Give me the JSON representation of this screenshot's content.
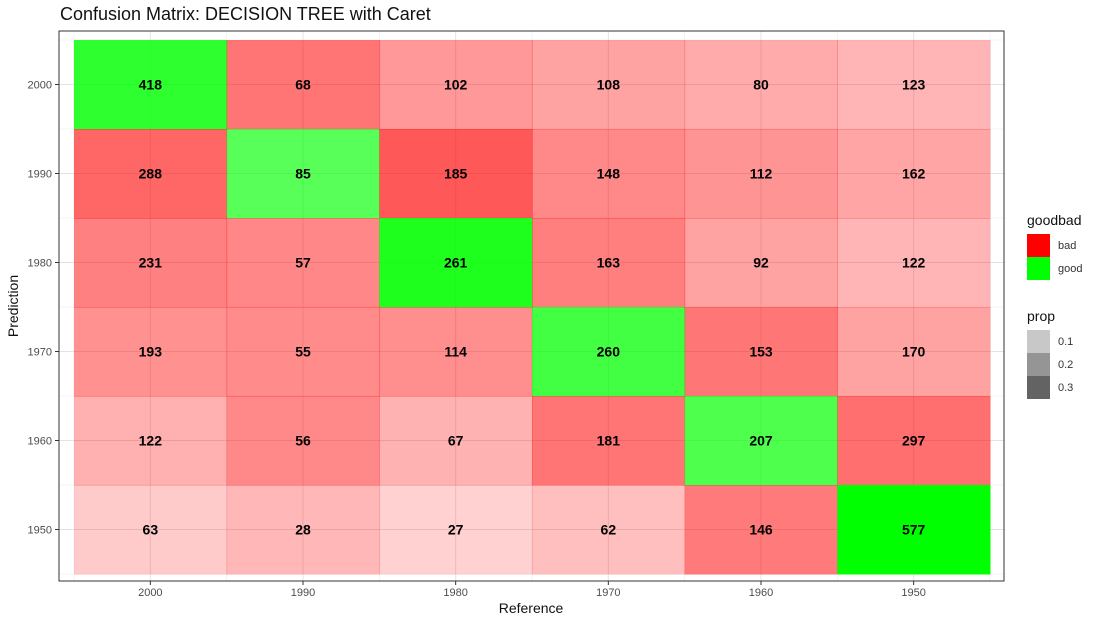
{
  "chart_data": {
    "type": "heatmap",
    "title": "Confusion Matrix: DECISION TREE with Caret",
    "xlabel": "Reference",
    "ylabel": "Prediction",
    "x_categories": [
      "2000",
      "1990",
      "1980",
      "1970",
      "1960",
      "1950"
    ],
    "y_categories": [
      "2000",
      "1990",
      "1980",
      "1970",
      "1960",
      "1950"
    ],
    "values": [
      [
        418,
        68,
        102,
        108,
        80,
        123
      ],
      [
        288,
        85,
        185,
        148,
        112,
        162
      ],
      [
        231,
        57,
        261,
        163,
        92,
        122
      ],
      [
        193,
        55,
        114,
        260,
        153,
        170
      ],
      [
        122,
        56,
        67,
        181,
        207,
        297
      ],
      [
        63,
        28,
        27,
        62,
        146,
        577
      ]
    ],
    "fill_legend": {
      "title": "goodbad",
      "entries": [
        {
          "label": "bad",
          "color": "#ff0000"
        },
        {
          "label": "good",
          "color": "#00ff00"
        }
      ]
    },
    "alpha_legend": {
      "title": "prop",
      "entries": [
        {
          "label": "0.1",
          "color": "#c8c8c8"
        },
        {
          "label": "0.2",
          "color": "#959595"
        },
        {
          "label": "0.3",
          "color": "#636363"
        }
      ]
    },
    "grid": true,
    "legend_position": "right"
  }
}
